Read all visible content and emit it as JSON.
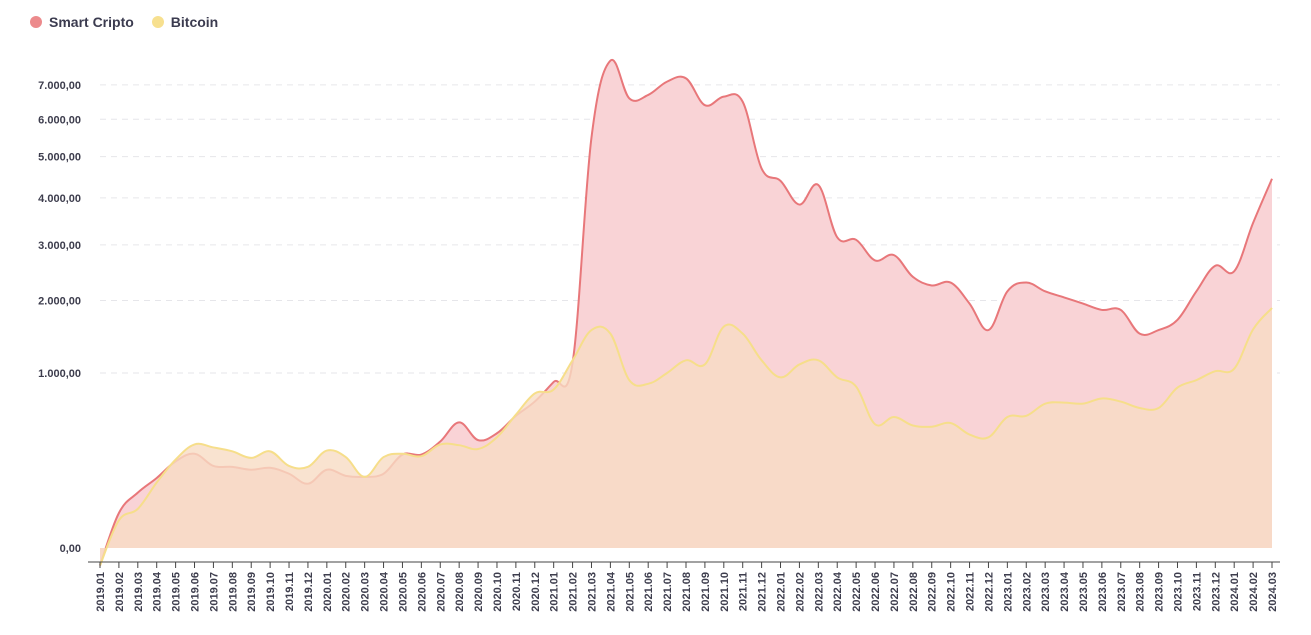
{
  "chart_data": {
    "type": "area",
    "colors": {
      "smart_line": "#e8777a",
      "smart_fill": "#f9d3d6",
      "btc_line": "#f6de8a",
      "btc_fill": "#f8dcc4"
    },
    "x": [
      "2019.01",
      "2019.02",
      "2019.03",
      "2019.04",
      "2019.05",
      "2019.06",
      "2019.07",
      "2019.08",
      "2019.09",
      "2019.10",
      "2019.11",
      "2019.12",
      "2020.01",
      "2020.02",
      "2020.03",
      "2020.04",
      "2020.05",
      "2020.06",
      "2020.07",
      "2020.08",
      "2020.09",
      "2020.10",
      "2020.11",
      "2020.12",
      "2021.01",
      "2021.02",
      "2021.03",
      "2021.04",
      "2021.05",
      "2021.06",
      "2021.07",
      "2021.08",
      "2021.09",
      "2021.10",
      "2021.11",
      "2021.12",
      "2022.01",
      "2022.02",
      "2022.03",
      "2022.04",
      "2022.05",
      "2022.06",
      "2022.07",
      "2022.08",
      "2022.09",
      "2022.10",
      "2022.11",
      "2022.12",
      "2023.01",
      "2023.02",
      "2023.03",
      "2023.04",
      "2023.05",
      "2023.06",
      "2023.07",
      "2023.08",
      "2023.09",
      "2023.10",
      "2023.11",
      "2023.12",
      "2024.01",
      "2024.02",
      "2024.03"
    ],
    "y_ticks": [
      {
        "label": "0,00",
        "value": 0
      },
      {
        "label": "1.000,00",
        "value": 1000
      },
      {
        "label": "2.000,00",
        "value": 2000
      },
      {
        "label": "3.000,00",
        "value": 3000
      },
      {
        "label": "4.000,00",
        "value": 4000
      },
      {
        "label": "5.000,00",
        "value": 5000
      },
      {
        "label": "6.000,00",
        "value": 6000
      },
      {
        "label": "7.000,00",
        "value": 7000
      }
    ],
    "scale": "sqrt",
    "ylim": [
      0,
      7700
    ],
    "grid": true,
    "legend_position": "top-left",
    "series": [
      {
        "name": "Smart Cripto",
        "values": [
          -10,
          40,
          100,
          160,
          245,
          290,
          220,
          215,
          200,
          210,
          180,
          135,
          200,
          170,
          165,
          180,
          285,
          285,
          370,
          515,
          380,
          430,
          570,
          700,
          900,
          1120,
          5500,
          7750,
          6600,
          6700,
          7100,
          7200,
          6400,
          6650,
          6500,
          4700,
          4400,
          3850,
          4300,
          3150,
          3100,
          2700,
          2800,
          2400,
          2250,
          2300,
          1950,
          1550,
          2150,
          2300,
          2150,
          2050,
          1950,
          1850,
          1850,
          1500,
          1550,
          1700,
          2150,
          2600,
          2500,
          3450,
          4450
        ]
      },
      {
        "name": "Bitcoin",
        "values": [
          -10,
          25,
          50,
          140,
          255,
          350,
          330,
          305,
          265,
          305,
          220,
          215,
          310,
          270,
          165,
          270,
          290,
          275,
          350,
          345,
          320,
          400,
          580,
          780,
          820,
          1150,
          1550,
          1500,
          920,
          880,
          1000,
          1150,
          1100,
          1600,
          1500,
          1150,
          950,
          1100,
          1150,
          950,
          850,
          500,
          560,
          490,
          480,
          510,
          420,
          400,
          560,
          570,
          680,
          690,
          680,
          730,
          700,
          640,
          640,
          840,
          920,
          1020,
          1050,
          1560,
          1880
        ]
      }
    ]
  }
}
